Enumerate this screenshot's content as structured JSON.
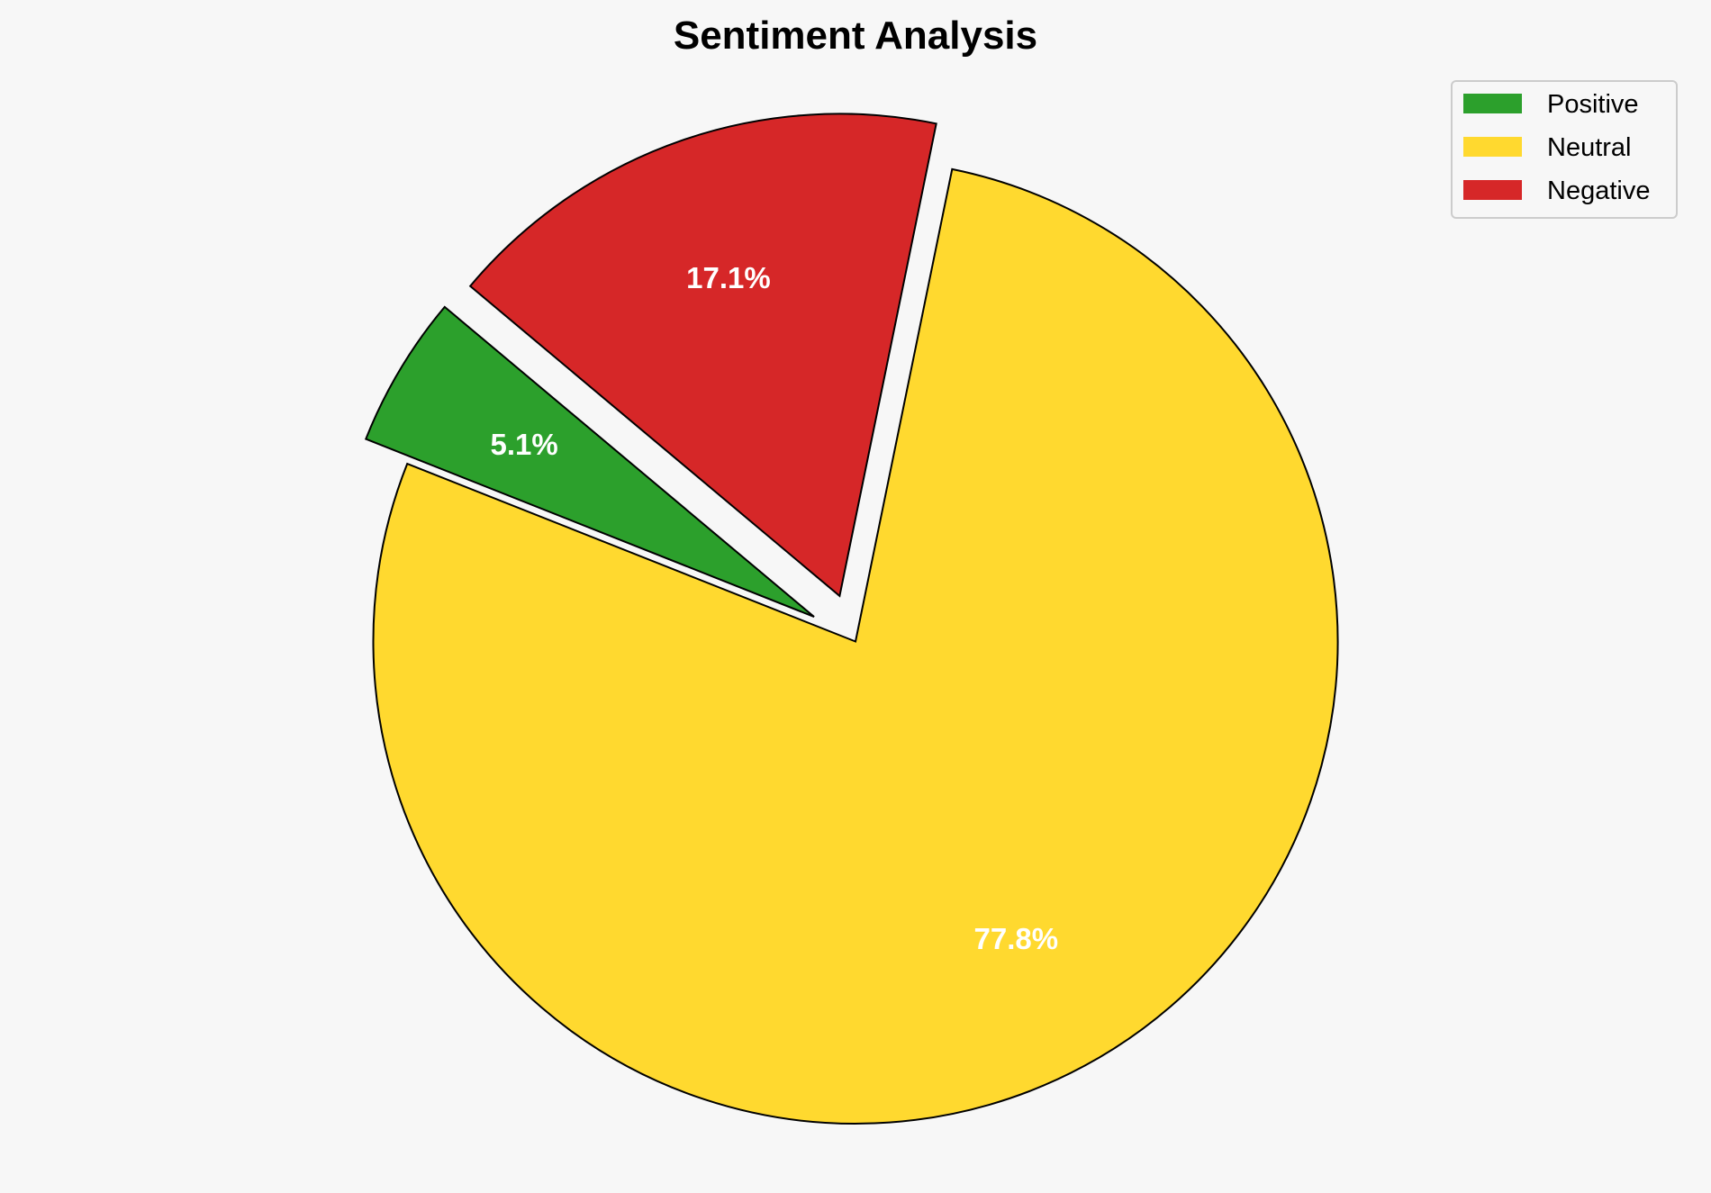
{
  "chart_data": {
    "type": "pie",
    "title": "Sentiment Analysis",
    "categories": [
      "Positive",
      "Neutral",
      "Negative"
    ],
    "values": [
      5.1,
      77.8,
      17.1
    ],
    "labels": [
      "5.1%",
      "77.8%",
      "17.1%"
    ],
    "colors": [
      "#2ca02c",
      "#ffd92f",
      "#d62728"
    ],
    "explode": [
      0.1,
      0,
      0.1
    ],
    "start_angle_deg": 140,
    "direction": "counterclockwise",
    "edge_color": "#000000",
    "legend": {
      "placement": "top-right",
      "entries": [
        "Positive",
        "Neutral",
        "Negative"
      ]
    },
    "background": "#f7f7f7"
  }
}
